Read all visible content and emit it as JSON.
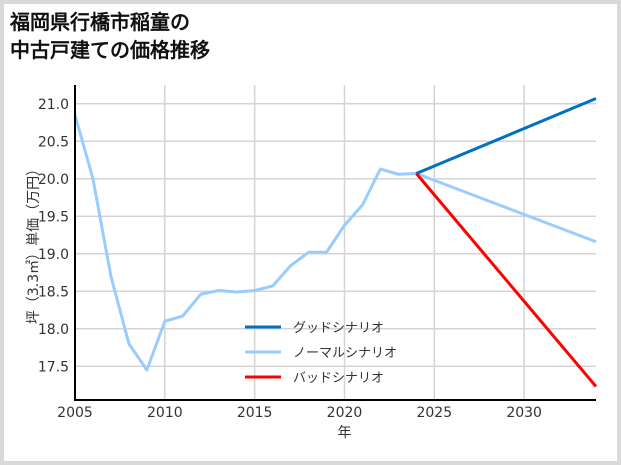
{
  "title_line1": "福岡県行橋市稲童の",
  "title_line2": "中古戸建ての価格推移",
  "chart_data": {
    "type": "line",
    "title": "福岡県行橋市稲童の中古戸建ての価格推移",
    "xlabel": "年",
    "ylabel": "坪（3.3㎡）単価（万円）",
    "xlim": [
      2005,
      2034
    ],
    "ylim": [
      17.05,
      21.25
    ],
    "xticks": [
      2005,
      2010,
      2015,
      2020,
      2025,
      2030
    ],
    "yticks": [
      17.5,
      18.0,
      18.5,
      19.0,
      19.5,
      20.0,
      20.5,
      21.0
    ],
    "grid": true,
    "legend_position": "lower center",
    "series": [
      {
        "name": "ノーマルシナリオ",
        "color": "#99ccff",
        "x": [
          2005,
          2006,
          2007,
          2008,
          2009,
          2010,
          2011,
          2012,
          2013,
          2014,
          2015,
          2016,
          2017,
          2018,
          2019,
          2020,
          2021,
          2022,
          2023,
          2024,
          2034
        ],
        "values": [
          20.85,
          20.0,
          18.7,
          17.8,
          17.45,
          18.1,
          18.17,
          18.46,
          18.51,
          18.49,
          18.51,
          18.57,
          18.84,
          19.02,
          19.02,
          19.38,
          19.65,
          20.13,
          20.06,
          20.07,
          19.16
        ]
      },
      {
        "name": "グッドシナリオ",
        "color": "#0070c0",
        "x": [
          2024,
          2034
        ],
        "values": [
          20.07,
          21.07
        ]
      },
      {
        "name": "バッドシナリオ",
        "color": "#ff0000",
        "x": [
          2024,
          2034
        ],
        "values": [
          20.07,
          17.23
        ]
      }
    ]
  },
  "legend": [
    {
      "label": "グッドシナリオ",
      "color": "#0070c0"
    },
    {
      "label": "ノーマルシナリオ",
      "color": "#99ccff"
    },
    {
      "label": "バッドシナリオ",
      "color": "#ff0000"
    }
  ]
}
